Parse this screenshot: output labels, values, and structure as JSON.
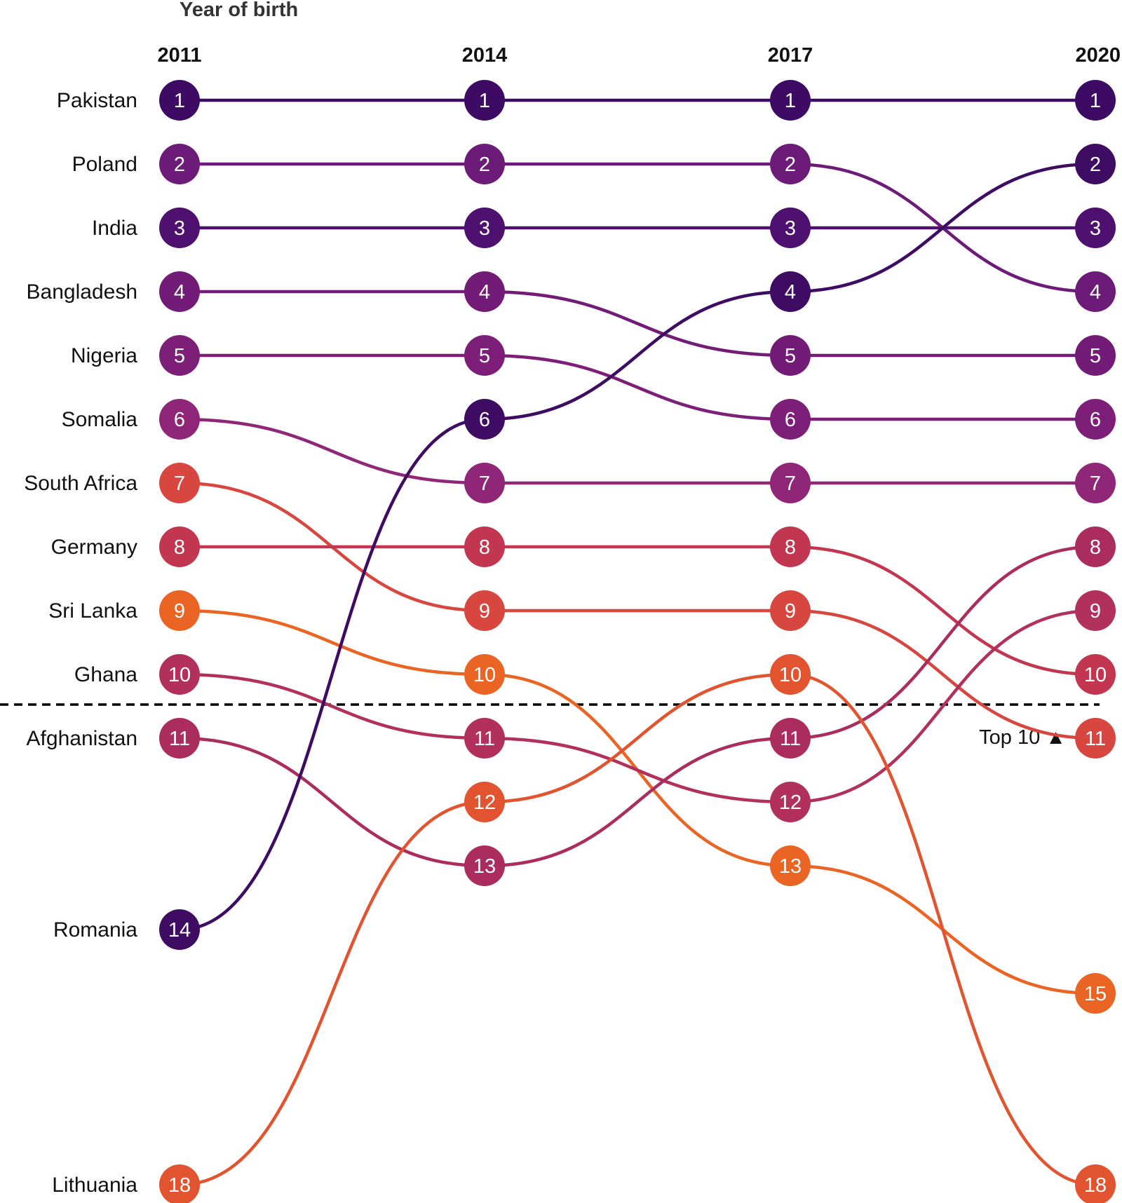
{
  "chart_data": {
    "type": "bump",
    "title": "Year of birth",
    "years": [
      "2011",
      "2014",
      "2017",
      "2020"
    ],
    "series": [
      {
        "name": "Pakistan",
        "ranks": [
          1,
          1,
          1,
          1
        ],
        "color": "#3d0b63"
      },
      {
        "name": "Poland",
        "ranks": [
          2,
          2,
          2,
          4
        ],
        "color": "#6d1b78"
      },
      {
        "name": "India",
        "ranks": [
          3,
          3,
          3,
          3
        ],
        "color": "#4f1170"
      },
      {
        "name": "Bangladesh",
        "ranks": [
          4,
          4,
          5,
          5
        ],
        "color": "#721c78"
      },
      {
        "name": "Nigeria",
        "ranks": [
          5,
          5,
          6,
          6
        ],
        "color": "#7d1f79"
      },
      {
        "name": "Somalia",
        "ranks": [
          6,
          7,
          7,
          7
        ],
        "color": "#8f2677"
      },
      {
        "name": "South Africa",
        "ranks": [
          7,
          9,
          9,
          11
        ],
        "color": "#d8473f"
      },
      {
        "name": "Germany",
        "ranks": [
          8,
          8,
          8,
          10
        ],
        "color": "#c2364f"
      },
      {
        "name": "Sri Lanka",
        "ranks": [
          9,
          10,
          13,
          15
        ],
        "color": "#ea6424"
      },
      {
        "name": "Ghana",
        "ranks": [
          10,
          11,
          12,
          9
        ],
        "color": "#b2315c"
      },
      {
        "name": "Afghanistan",
        "ranks": [
          11,
          13,
          11,
          8
        ],
        "color": "#ab2d5e"
      },
      {
        "name": "Romania",
        "ranks": [
          14,
          6,
          4,
          2
        ],
        "color": "#3f0c63"
      },
      {
        "name": "Lithuania",
        "ranks": [
          18,
          12,
          10,
          18
        ],
        "color": "#e1542f"
      }
    ],
    "threshold": {
      "after_rank": 10,
      "label": "Top 10 ▲"
    }
  }
}
